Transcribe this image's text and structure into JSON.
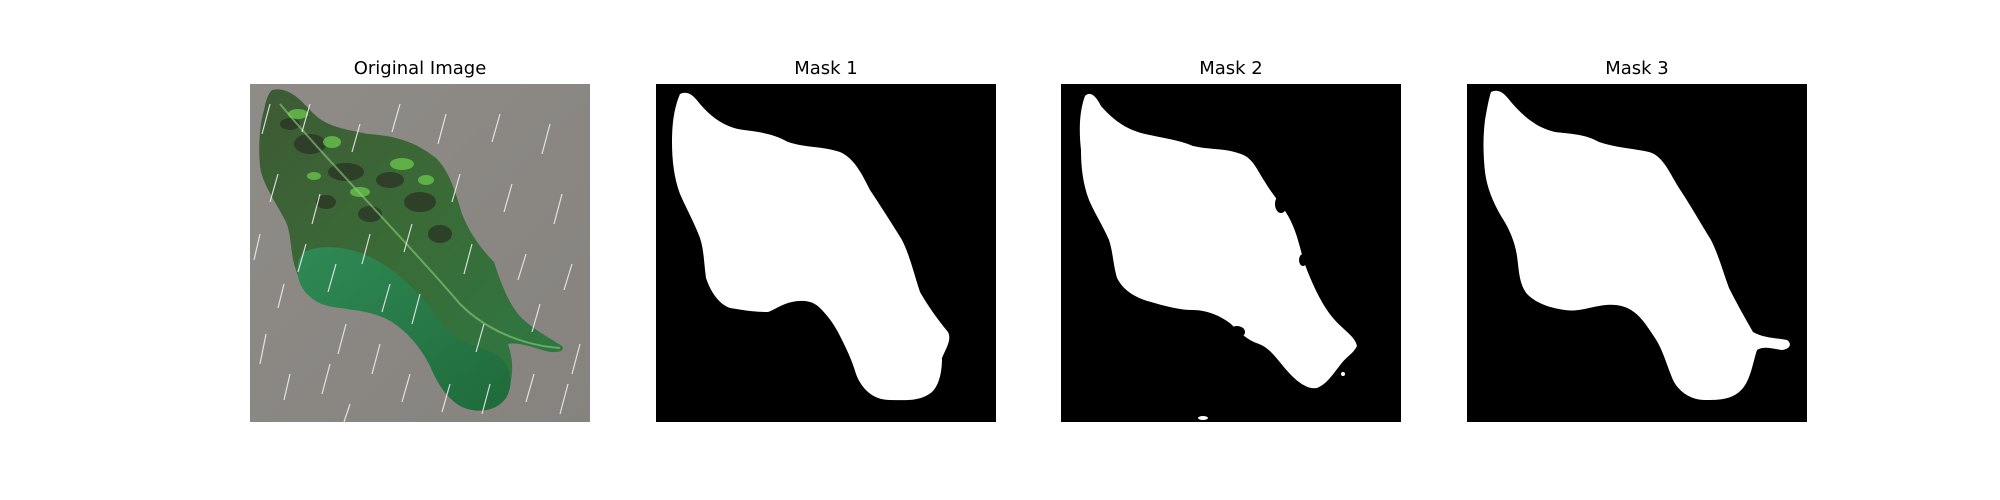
{
  "panels": [
    {
      "title": "Original Image",
      "kind": "photo",
      "subject": "leaf-with-rain"
    },
    {
      "title": "Mask 1",
      "kind": "segmentation-mask"
    },
    {
      "title": "Mask 2",
      "kind": "segmentation-mask"
    },
    {
      "title": "Mask 3",
      "kind": "segmentation-mask"
    }
  ],
  "colors": {
    "mask_background": "#000000",
    "mask_foreground": "#ffffff",
    "photo_background": "#8c8a87",
    "leaf_dark": "#2f4a2a",
    "leaf_light": "#2f8a4a",
    "leaf_highlight": "#6fcf4e",
    "rain": "#f2f2f2"
  }
}
